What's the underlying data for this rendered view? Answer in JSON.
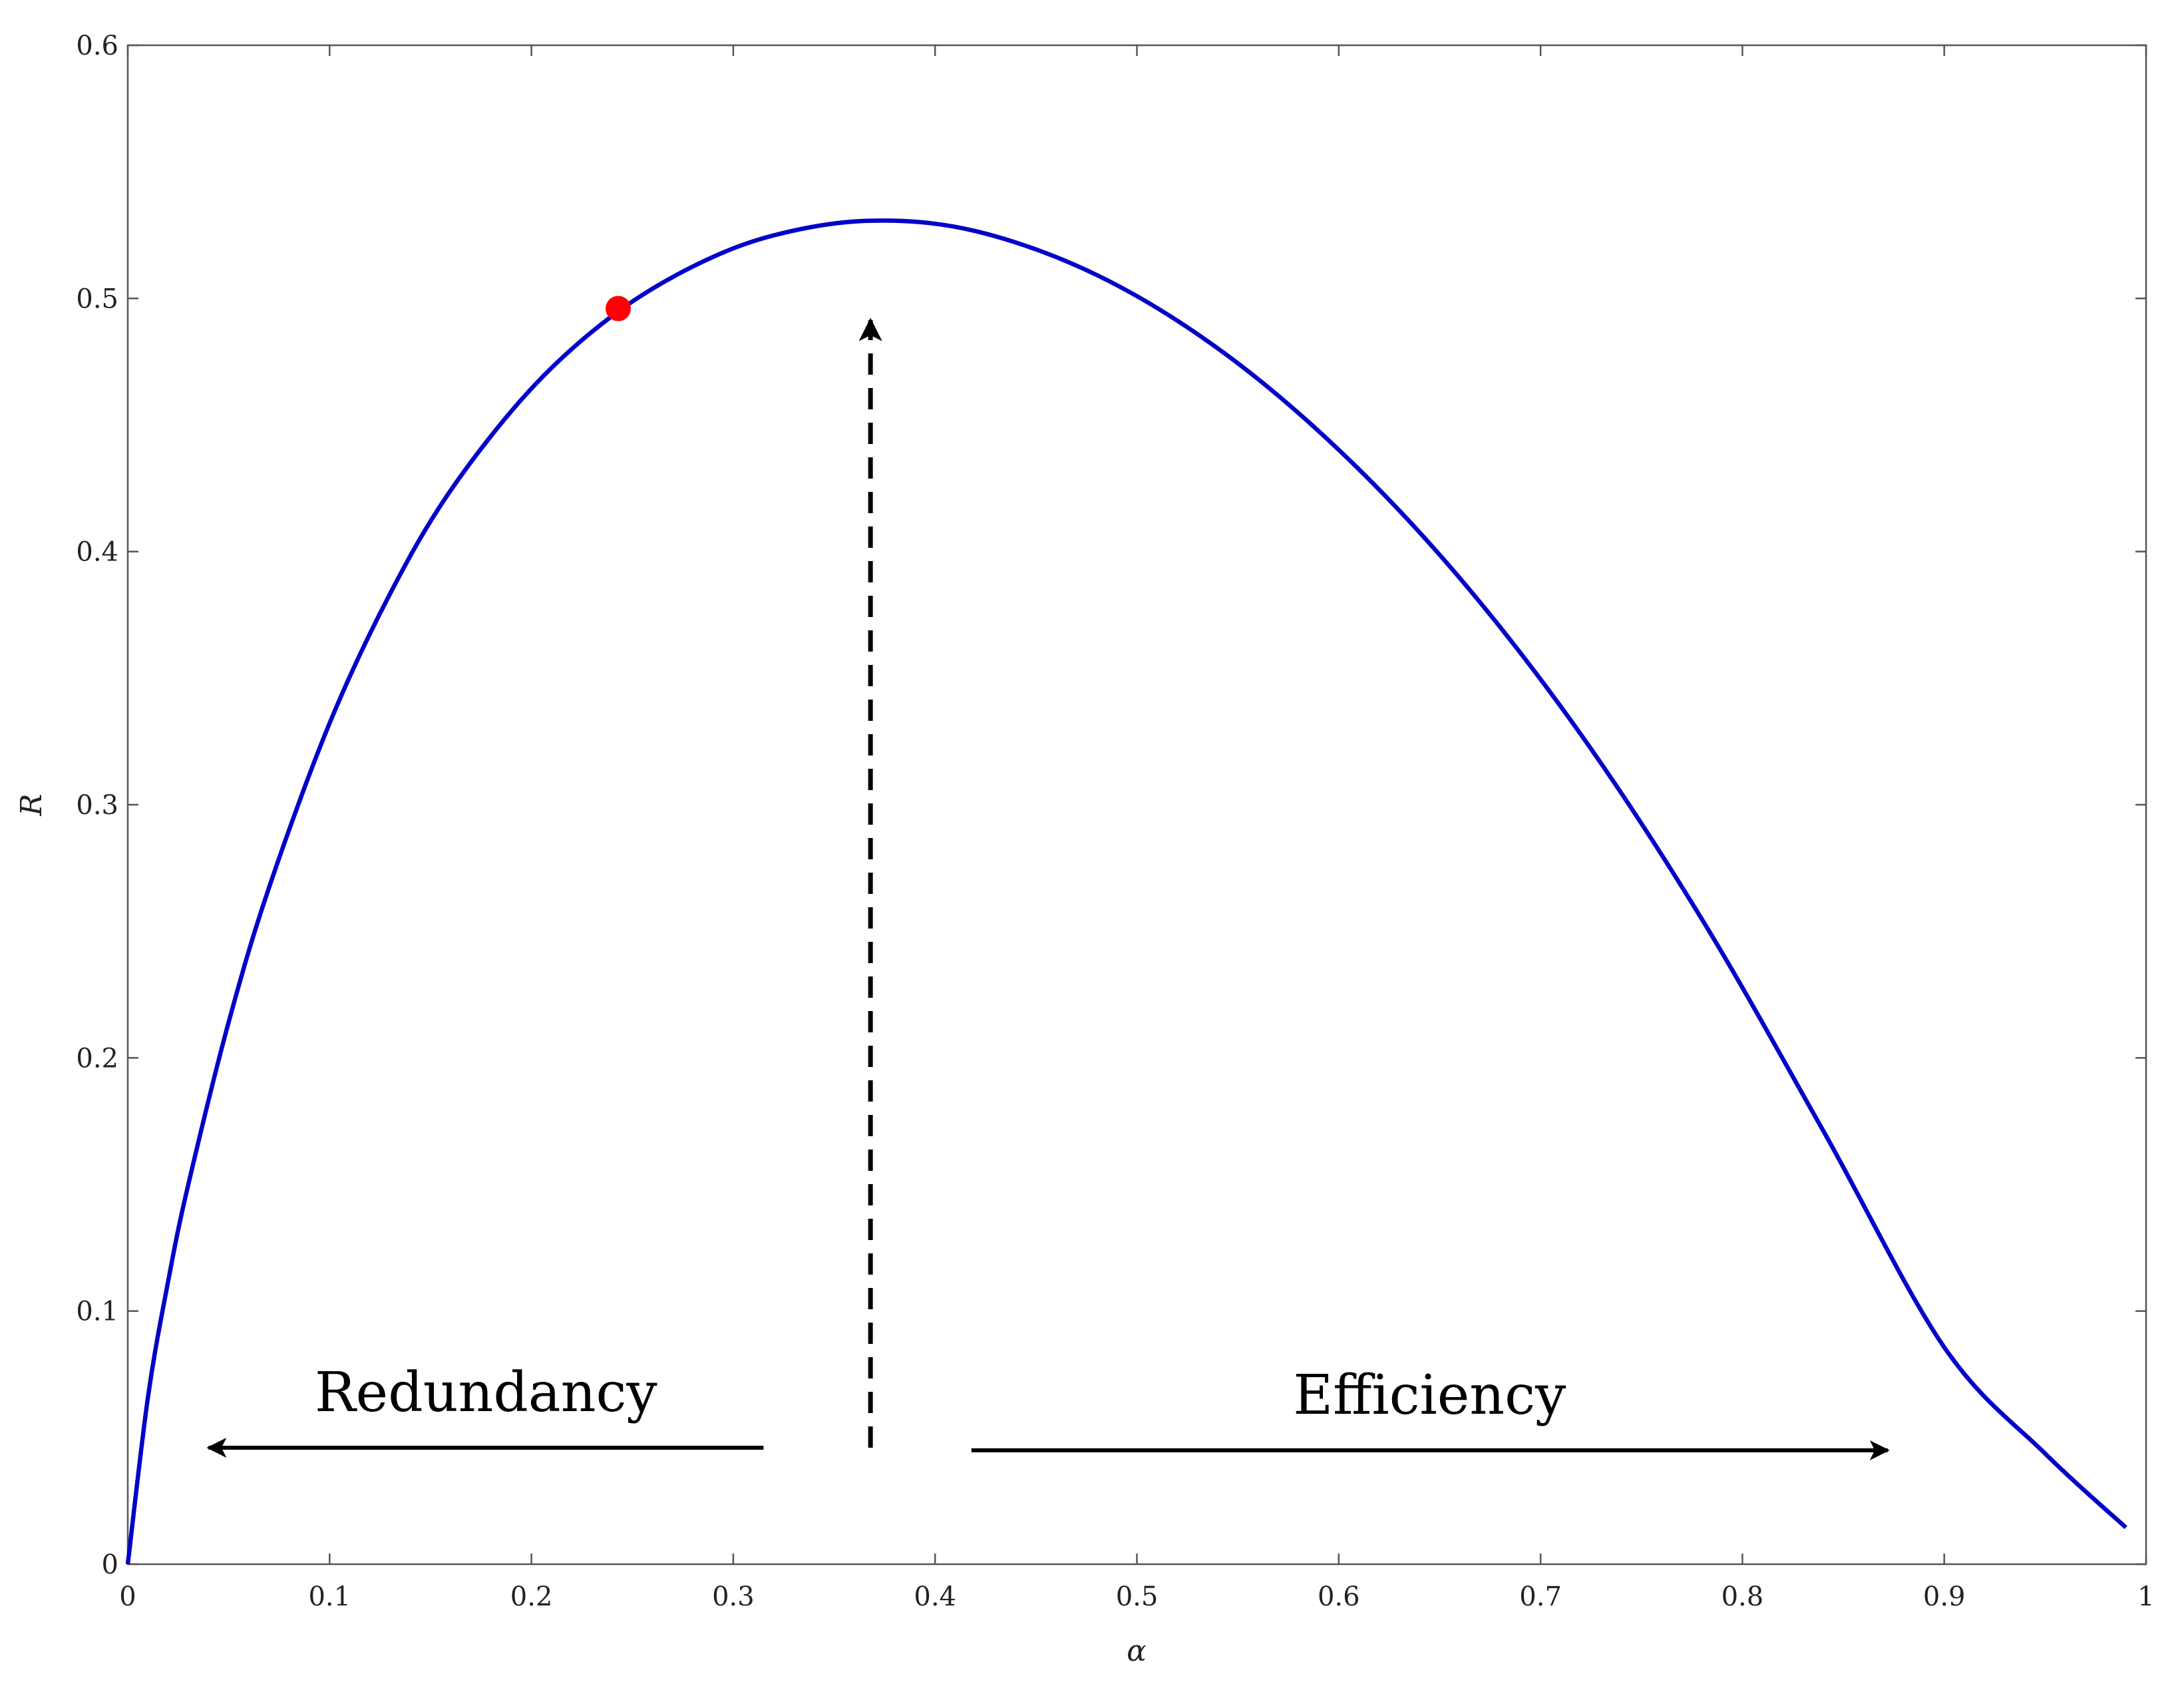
{
  "chart_data": {
    "type": "line",
    "title": "",
    "xlabel": "α",
    "ylabel": "R",
    "xlim": [
      0,
      1
    ],
    "ylim": [
      0,
      0.6
    ],
    "x_ticks": [
      0,
      0.1,
      0.2,
      0.3,
      0.4,
      0.5,
      0.6,
      0.7,
      0.8,
      0.9,
      1
    ],
    "x_tick_labels": [
      "0",
      "0.1",
      "0.2",
      "0.3",
      "0.4",
      "0.5",
      "0.6",
      "0.7",
      "0.8",
      "0.9",
      "1"
    ],
    "y_ticks": [
      0,
      0.1,
      0.2,
      0.3,
      0.4,
      0.5,
      0.6
    ],
    "y_tick_labels": [
      "0",
      "0.1",
      "0.2",
      "0.3",
      "0.4",
      "0.5",
      "0.6"
    ],
    "grid": false,
    "legend": "none",
    "series": [
      {
        "color": "#0000c8",
        "x": [
          0.0,
          0.01,
          0.02,
          0.03,
          0.05,
          0.07,
          0.1,
          0.13,
          0.16,
          0.2,
          0.24,
          0.28,
          0.32,
          0.368,
          0.42,
          0.48,
          0.54,
          0.6,
          0.66,
          0.72,
          0.78,
          0.84,
          0.9,
          0.95,
          0.99
        ],
        "y": [
          0.0,
          0.0659,
          0.1118,
          0.15,
          0.2141,
          0.2673,
          0.3322,
          0.3834,
          0.4242,
          0.4644,
          0.4931,
          0.5126,
          0.5249,
          0.5307,
          0.5266,
          0.5093,
          0.4803,
          0.4402,
          0.3895,
          0.3277,
          0.2547,
          0.1713,
          0.0857,
          0.0437,
          0.0145
        ]
      }
    ],
    "highlight_point": {
      "x": 0.243,
      "y": 0.496,
      "color": "#ff0000"
    },
    "annotations": [
      {
        "text": "Redundancy",
        "direction": "left",
        "arrow_from": [
          0.315,
          0.046
        ],
        "arrow_to": [
          0.04,
          0.046
        ]
      },
      {
        "text": "Efficiency",
        "direction": "right",
        "arrow_from": [
          0.418,
          0.045
        ],
        "arrow_to": [
          0.872,
          0.045
        ]
      }
    ],
    "vertical_arrow": {
      "x": 0.368,
      "from_y": 0.046,
      "to_y": 0.493,
      "style": "dashed"
    }
  }
}
